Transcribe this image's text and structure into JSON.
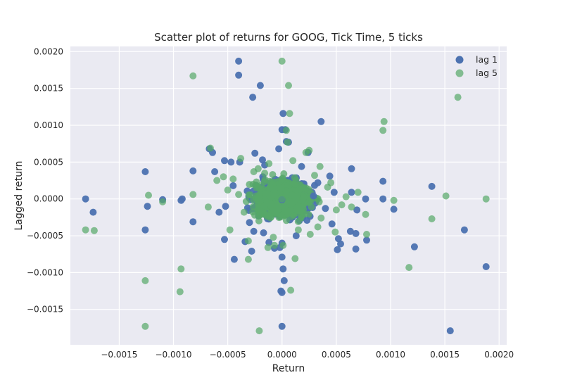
{
  "chart_data": {
    "type": "scatter",
    "title": "Scatter plot of returns for GOOG, Tick Time, 5 ticks",
    "xlabel": "Return",
    "ylabel": "Lagged return",
    "xlim": [
      -0.00195,
      0.00207
    ],
    "ylim": [
      -0.00198,
      0.00207
    ],
    "x_ticks": [
      -0.0015,
      -0.001,
      -0.0005,
      0.0,
      0.0005,
      0.001,
      0.0015,
      0.002
    ],
    "x_tick_labels": [
      "−0.0015",
      "−0.0010",
      "−0.0005",
      "0.0000",
      "0.0005",
      "0.0010",
      "0.0015",
      "0.0020"
    ],
    "y_ticks": [
      -0.0015,
      -0.001,
      -0.0005,
      0.0,
      0.0005,
      0.001,
      0.0015,
      0.002
    ],
    "y_tick_labels": [
      "−0.0015",
      "−0.0010",
      "−0.0005",
      "0.0000",
      "0.0005",
      "0.0010",
      "0.0015",
      "0.0020"
    ],
    "grid": true,
    "background": "#eaeaf2",
    "legend_position": "top-right",
    "series": [
      {
        "name": "lag 1",
        "color": "#4c72b0",
        "points": [
          [
            -0.00181,
            0.0
          ],
          [
            -0.00174,
            -0.00018
          ],
          [
            -0.00126,
            0.00037
          ],
          [
            -0.00124,
            -0.0001
          ],
          [
            -0.00126,
            -0.00042
          ],
          [
            -0.0011,
            -1e-05
          ],
          [
            -0.00093,
            -2e-05
          ],
          [
            -0.00092,
            0.0
          ],
          [
            -0.00082,
            0.00038
          ],
          [
            -0.00082,
            -0.00031
          ],
          [
            -0.00067,
            0.00068
          ],
          [
            -0.00064,
            0.00063
          ],
          [
            -0.00062,
            0.00037
          ],
          [
            -0.00058,
            -0.00018
          ],
          [
            -0.00053,
            0.00052
          ],
          [
            -0.00053,
            -0.00055
          ],
          [
            -0.00047,
            0.0005
          ],
          [
            -0.00044,
            -0.00082
          ],
          [
            -0.00039,
            0.0005
          ],
          [
            -0.0004,
            0.00187
          ],
          [
            -0.0004,
            0.00168
          ],
          [
            -0.00034,
            -0.00058
          ],
          [
            -0.00028,
            -0.00071
          ],
          [
            -0.00026,
            -0.00044
          ],
          [
            -0.00025,
            0.00062
          ],
          [
            -0.00018,
            0.00053
          ],
          [
            -0.00017,
            -0.00046
          ],
          [
            -0.00016,
            0.00046
          ],
          [
            -0.00027,
            0.00138
          ],
          [
            -0.0002,
            0.00154
          ],
          [
            -0.00012,
            -0.00059
          ],
          [
            -7e-05,
            -0.00067
          ],
          [
            -3e-05,
            0.00068
          ],
          [
            0.0,
            0.00094
          ],
          [
            1e-05,
            0.00116
          ],
          [
            3e-05,
            0.00094
          ],
          [
            4e-05,
            0.00078
          ],
          [
            6e-05,
            0.00077
          ],
          [
            0.0,
            -1e-05
          ],
          [
            0.0,
            -0.0006
          ],
          [
            -2e-05,
            -0.00066
          ],
          [
            0.0,
            -0.00079
          ],
          [
            1e-05,
            -0.00095
          ],
          [
            2e-05,
            -0.00111
          ],
          [
            -1e-05,
            -0.00125
          ],
          [
            0.0,
            -0.00127
          ],
          [
            0.0,
            -0.00173
          ],
          [
            0.00013,
            -0.0005
          ],
          [
            0.00024,
            0.00063
          ],
          [
            0.00023,
            -0.00029
          ],
          [
            0.00029,
            4e-05
          ],
          [
            0.00036,
            0.00105
          ],
          [
            0.00044,
            0.00031
          ],
          [
            0.00046,
            -0.00034
          ],
          [
            0.00051,
            -0.00069
          ],
          [
            0.00052,
            -0.00054
          ],
          [
            0.00054,
            -0.00061
          ],
          [
            0.00064,
            0.00041
          ],
          [
            0.00063,
            -0.00044
          ],
          [
            0.00064,
            9e-05
          ],
          [
            0.00068,
            -0.00047
          ],
          [
            0.00068,
            -0.00068
          ],
          [
            0.00069,
            -0.00015
          ],
          [
            0.00077,
            0.0
          ],
          [
            0.00078,
            -0.00056
          ],
          [
            0.00093,
            0.00024
          ],
          [
            0.00093,
            0.0
          ],
          [
            0.00103,
            -0.00014
          ],
          [
            0.00122,
            -0.00065
          ],
          [
            0.00138,
            0.00017
          ],
          [
            0.00155,
            -0.00179
          ],
          [
            0.00168,
            -0.00042
          ],
          [
            0.00188,
            -0.00092
          ],
          [
            0.0004,
            -0.00013
          ],
          [
            -0.00045,
            0.00018
          ],
          [
            -0.0003,
            -0.00032
          ],
          [
            0.00033,
            0.00022
          ],
          [
            0.00048,
            9e-05
          ],
          [
            -0.00052,
            -0.0001
          ],
          [
            0.00018,
            0.00044
          ]
        ]
      },
      {
        "name": "lag 5",
        "color": "#55a868",
        "points": [
          [
            -0.00181,
            -0.00042
          ],
          [
            -0.00173,
            -0.00043
          ],
          [
            -0.00126,
            -0.00111
          ],
          [
            -0.00126,
            -0.00173
          ],
          [
            -0.00123,
            5e-05
          ],
          [
            -0.0011,
            -4e-05
          ],
          [
            -0.00093,
            -0.00095
          ],
          [
            -0.00094,
            -0.00126
          ],
          [
            -0.00082,
            0.00167
          ],
          [
            -0.00082,
            6e-05
          ],
          [
            -0.00068,
            -0.00011
          ],
          [
            -0.00066,
            0.00069
          ],
          [
            -0.0006,
            0.00025
          ],
          [
            -0.00054,
            0.0003
          ],
          [
            -0.00048,
            -0.00042
          ],
          [
            -0.00045,
            0.00027
          ],
          [
            -0.00038,
            0.00055
          ],
          [
            -0.00031,
            -0.00057
          ],
          [
            -0.00031,
            -0.00082
          ],
          [
            -0.00026,
            0.00037
          ],
          [
            -0.00021,
            -0.00179
          ],
          [
            -0.00016,
            0.00035
          ],
          [
            -0.00013,
            -0.00066
          ],
          [
            -7e-05,
            -0.00063
          ],
          [
            0.0,
            0.00187
          ],
          [
            6e-05,
            0.00154
          ],
          [
            7e-05,
            0.00116
          ],
          [
            4e-05,
            0.00093
          ],
          [
            5e-05,
            0.00077
          ],
          [
            1e-05,
            -0.00063
          ],
          [
            8e-05,
            -0.00124
          ],
          [
            0.00012,
            -0.00081
          ],
          [
            0.00022,
            0.00063
          ],
          [
            0.00025,
            0.00066
          ],
          [
            0.00035,
            0.00044
          ],
          [
            0.00033,
            -0.00038
          ],
          [
            0.00045,
            0.00022
          ],
          [
            0.00049,
            -0.00045
          ],
          [
            0.00055,
            -8e-05
          ],
          [
            0.00059,
            3e-05
          ],
          [
            0.00064,
            -0.00011
          ],
          [
            0.0007,
            9e-05
          ],
          [
            0.00077,
            -0.00021
          ],
          [
            0.00078,
            -0.00048
          ],
          [
            0.00093,
            0.00093
          ],
          [
            0.00094,
            0.00105
          ],
          [
            0.00103,
            -2e-05
          ],
          [
            0.00117,
            -0.00093
          ],
          [
            0.00138,
            -0.00027
          ],
          [
            0.00151,
            4e-05
          ],
          [
            0.00162,
            0.00138
          ],
          [
            0.00188,
            0.0
          ],
          [
            -0.0005,
            0.00012
          ],
          [
            0.0005,
            -0.00015
          ],
          [
            -0.00012,
            0.00048
          ],
          [
            0.00015,
            -0.00042
          ],
          [
            0.0003,
            0.00032
          ],
          [
            -0.00035,
            -0.00018
          ],
          [
            0.00042,
            0.00016
          ],
          [
            -0.00022,
            0.00041
          ],
          [
            0.00026,
            -0.00048
          ],
          [
            -0.0004,
            6e-05
          ],
          [
            0.00036,
            -0.00026
          ],
          [
            0.0001,
            0.00052
          ],
          [
            -8e-05,
            -0.00052
          ],
          [
            0.0002,
            2e-05
          ],
          [
            -0.0002,
            -3e-05
          ],
          [
            0.00012,
            0.0002
          ],
          [
            -0.00014,
            -0.00022
          ],
          [
            0.0,
            0.0
          ]
        ]
      }
    ],
    "dense_cluster": {
      "x_range": [
        -0.00035,
        0.00035
      ],
      "y_range": [
        -0.00035,
        0.00035
      ],
      "note_colors": [
        "#4c72b0",
        "#55a868"
      ]
    }
  }
}
